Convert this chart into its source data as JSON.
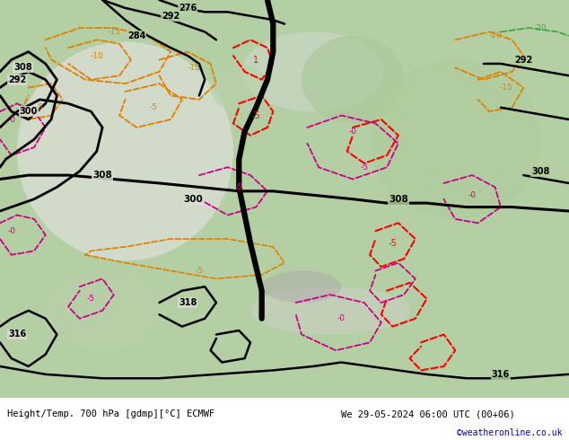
{
  "title_left": "Height/Temp. 700 hPa [gdmp][°C] ECMWF",
  "title_right": "We 29-05-2024 06:00 UTC (00+06)",
  "credit": "©weatheronline.co.uk",
  "figsize": [
    6.34,
    4.9
  ],
  "dpi": 100,
  "label_fontsize": 7.5,
  "credit_color": "#0000cc",
  "bottom_bar_color": "#e8e8e8",
  "map_green_light": "#c8ddb8",
  "map_green_dark": "#a0c090",
  "map_gray": "#b8b8b0",
  "map_white": "#e8e8e0"
}
